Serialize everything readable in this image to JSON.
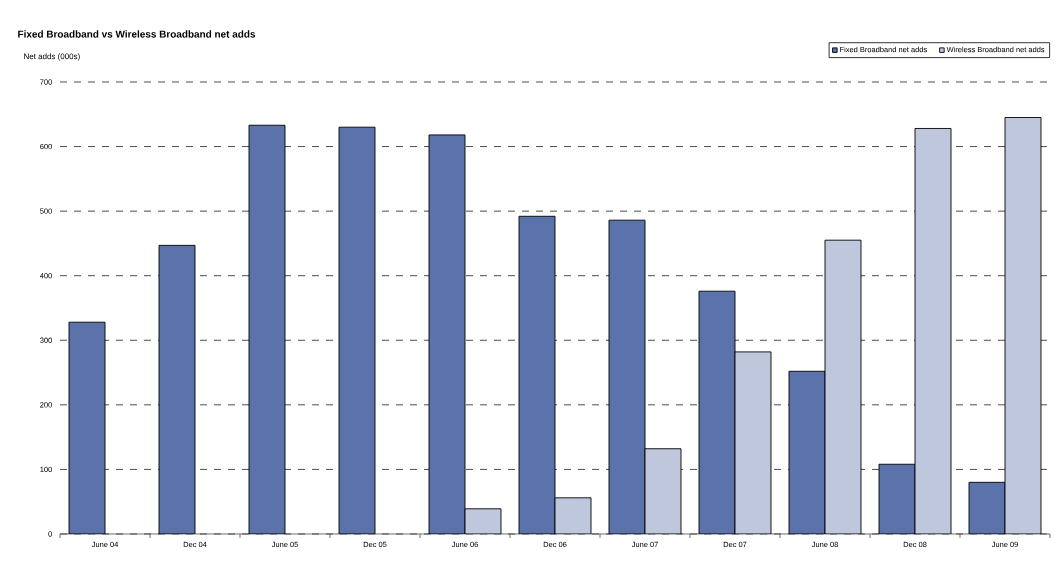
{
  "chart_data": {
    "type": "bar",
    "title": "Fixed Broadband vs Wireless Broadband net adds",
    "ylabel": "Net adds (000s)",
    "categories": [
      "June 04",
      "Dec 04",
      "June 05",
      "Dec 05",
      "June 06",
      "Dec 06",
      "June 07",
      "Dec 07",
      "June 08",
      "Dec 08",
      "June 09"
    ],
    "series": [
      {
        "name": "Fixed Broadband net adds",
        "color": "#5b73aa",
        "values": [
          328,
          447,
          633,
          630,
          618,
          492,
          486,
          376,
          252,
          108,
          80
        ]
      },
      {
        "name": "Wireless Broadband net adds",
        "color": "#bfc7dd",
        "values": [
          null,
          null,
          null,
          null,
          39,
          56,
          132,
          282,
          455,
          628,
          645
        ]
      }
    ],
    "ylim": [
      0,
      700
    ],
    "yticks": [
      0,
      100,
      200,
      300,
      400,
      500,
      600,
      700
    ],
    "grid": "y",
    "legend": "top right"
  }
}
